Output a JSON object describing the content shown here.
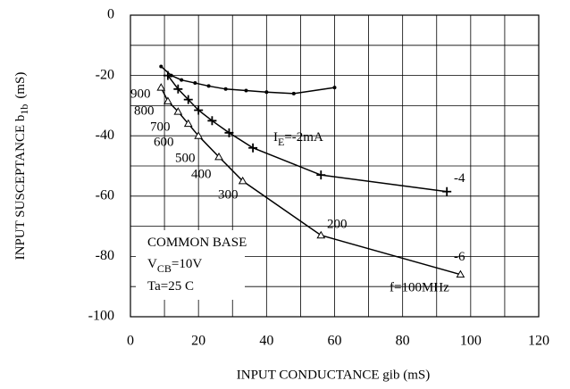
{
  "chart_data": {
    "type": "line",
    "x_label": "INPUT CONDUCTANCE gib (mS)",
    "y_label": {
      "text": "INPUT SUSCEPTANCE b",
      "sub": "1b",
      "unit": "(mS)"
    },
    "xlim": [
      0,
      120
    ],
    "xticks": [
      0,
      20,
      40,
      60,
      80,
      100,
      120
    ],
    "ylim": [
      -100,
      0
    ],
    "yticks": [
      0,
      -20,
      -40,
      -60,
      -80,
      -100
    ],
    "grid": true,
    "series": [
      {
        "marker": "dot",
        "color": "#000000",
        "x": [
          9,
          12,
          15,
          19,
          23,
          28,
          34,
          40,
          48,
          60
        ],
        "values": [
          -17,
          -20,
          -21.5,
          -22.5,
          -23.5,
          -24.5,
          -25,
          -25.5,
          -26,
          -24
        ]
      },
      {
        "marker": "plus",
        "color": "#000000",
        "x": [
          11,
          14,
          17,
          20,
          24,
          29,
          36,
          56,
          93
        ],
        "values": [
          -20,
          -24.5,
          -28,
          -31.5,
          -35,
          -39,
          -44,
          -53,
          -58.5
        ]
      },
      {
        "marker": "triangle",
        "color": "#000000",
        "x": [
          9,
          11,
          14,
          17,
          20,
          26,
          33,
          56,
          97
        ],
        "values": [
          -24,
          -28.5,
          -32,
          -36,
          -40,
          -47,
          -55,
          -73,
          -86
        ]
      }
    ],
    "curve_labels": [
      {
        "label": "I",
        "sub": "E",
        "rest": "=-2mA"
      },
      {
        "label": "-4"
      },
      {
        "label": "-6"
      }
    ],
    "frequency_labels": [
      "900",
      "800",
      "700",
      "600",
      "500",
      "400",
      "300",
      "200",
      "f=100MHz"
    ],
    "conditions": [
      {
        "label": "COMMON BASE"
      },
      {
        "label": "V",
        "sub": "CB",
        "rest": "=10V"
      },
      {
        "label": "Ta=25  C"
      }
    ]
  }
}
